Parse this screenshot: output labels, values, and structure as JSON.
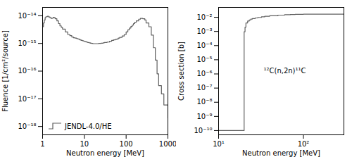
{
  "chart_data": [
    {
      "type": "line",
      "line_style": "step",
      "log": true,
      "xlabel": "Neutron energy [MeV]",
      "ylabel": "Fluence [1/cm²/source]",
      "xlim": [
        1.0,
        1000.0
      ],
      "ylim": [
        5e-19,
        2e-14
      ],
      "xticks": [
        1,
        10,
        100,
        1000
      ],
      "yticks": [
        {
          "value": 1e-18,
          "label": "10⁻¹⁸"
        },
        {
          "value": 1e-17,
          "label": "10⁻¹⁷"
        },
        {
          "value": 1e-16,
          "label": "10⁻¹⁶"
        },
        {
          "value": 1e-15,
          "label": "10⁻¹⁵"
        },
        {
          "value": 1e-14,
          "label": "10⁻¹⁴"
        }
      ],
      "legend": "lower left",
      "x": [
        1.0,
        1.05,
        1.1,
        1.15,
        1.2,
        1.3,
        1.4,
        1.5,
        1.6,
        1.7,
        1.8,
        1.9,
        2.0,
        2.2,
        2.4,
        2.6,
        2.8,
        3.0,
        3.5,
        4.0,
        4.5,
        5.0,
        5.5,
        6.0,
        6.5,
        7.0,
        7.5,
        8.0,
        8.5,
        9.0,
        9.5,
        10.0,
        11.0,
        12.0,
        13.0,
        14.0,
        15.0,
        16.0,
        18.0,
        20.0,
        22.0,
        25.0,
        28.0,
        30.0,
        35.0,
        40.0,
        45.0,
        50.0,
        55.0,
        60.0,
        65.0,
        70.0,
        80.0,
        90.0,
        100.0,
        110.0,
        120.0,
        130.0,
        140.0,
        150.0,
        160.0,
        175.0,
        200.0,
        220.0,
        250.0,
        280.0,
        300.0,
        350.0,
        400.0,
        450.0,
        500.0,
        550.0,
        600.0,
        700.0,
        800.0,
        1000.0
      ],
      "series": [
        {
          "name": "JENDL-4.0/HE",
          "color": "#606060",
          "values": [
            4e-15,
            5.5e-15,
            7e-15,
            8.5e-15,
            9.2e-15,
            9.5e-15,
            9e-15,
            8.5e-15,
            8e-15,
            8.2e-15,
            8.8e-15,
            8.5e-15,
            7.8e-15,
            6.5e-15,
            5.2e-15,
            4.3e-15,
            3.8e-15,
            3.3e-15,
            2.6e-15,
            2.1e-15,
            1.9e-15,
            1.7e-15,
            1.6e-15,
            1.55e-15,
            1.5e-15,
            1.45e-15,
            1.38e-15,
            1.32e-15,
            1.28e-15,
            1.25e-15,
            1.22e-15,
            1.18e-15,
            1.12e-15,
            1.08e-15,
            1.05e-15,
            1.02e-15,
            1e-15,
            9.8e-16,
            9.8e-16,
            9.8e-16,
            1e-15,
            1.02e-15,
            1.05e-15,
            1.08e-15,
            1.12e-15,
            1.2e-15,
            1.28e-15,
            1.35e-15,
            1.4e-15,
            1.45e-15,
            1.55e-15,
            1.65e-15,
            1.85e-15,
            2.1e-15,
            2.6e-15,
            3.1e-15,
            3.6e-15,
            4.1e-15,
            4.6e-15,
            5.2e-15,
            5.8e-15,
            6.5e-15,
            7.5e-15,
            8e-15,
            7.8e-15,
            7e-15,
            5.5e-15,
            4e-15,
            2e-15,
            7e-16,
            2.5e-16,
            8e-17,
            3e-17,
            1.5e-17,
            6e-18,
            2e-18
          ]
        }
      ]
    },
    {
      "type": "line",
      "line_style": "step",
      "log": true,
      "xlabel": "Neutron energy [MeV]",
      "ylabel": "Cross section [b]",
      "xlim": [
        10.0,
        300.0
      ],
      "ylim": [
        5e-11,
        0.05
      ],
      "xticks": [
        {
          "value": 10,
          "label": "10¹"
        },
        {
          "value": 100,
          "label": "10²"
        }
      ],
      "yticks": [
        {
          "value": 1e-10,
          "label": "10⁻¹⁰"
        },
        {
          "value": 1e-09,
          "label": "10⁻⁹"
        },
        {
          "value": 1e-08,
          "label": "10⁻⁸"
        },
        {
          "value": 1e-07,
          "label": "10⁻⁷"
        },
        {
          "value": 1e-06,
          "label": "10⁻⁶"
        },
        {
          "value": 1e-05,
          "label": "10⁻⁵"
        },
        {
          "value": 0.0001,
          "label": "10⁻⁴"
        },
        {
          "value": 0.001,
          "label": "10⁻³"
        },
        {
          "value": 0.01,
          "label": "10⁻²"
        }
      ],
      "annotations": [
        "¹²C(n,2n)¹¹C"
      ],
      "x": [
        10.0,
        19.8,
        20.0,
        20.5,
        21.0,
        22.0,
        23.0,
        24.0,
        25.0,
        27.0,
        29.0,
        32.0,
        35.0,
        40.0,
        50.0,
        60.0,
        70.0,
        80.0,
        100.0,
        150.0,
        200.0,
        250.0,
        300.0
      ],
      "series": [
        {
          "color": "#606060",
          "values": [
            1e-10,
            1e-10,
            0.00095,
            0.002,
            0.004,
            0.0055,
            0.0065,
            0.0075,
            0.0082,
            0.009,
            0.0098,
            0.0108,
            0.0118,
            0.0128,
            0.0142,
            0.0152,
            0.0158,
            0.0162,
            0.0165,
            0.0168,
            0.0168,
            0.0168,
            0.0168
          ]
        }
      ]
    }
  ]
}
